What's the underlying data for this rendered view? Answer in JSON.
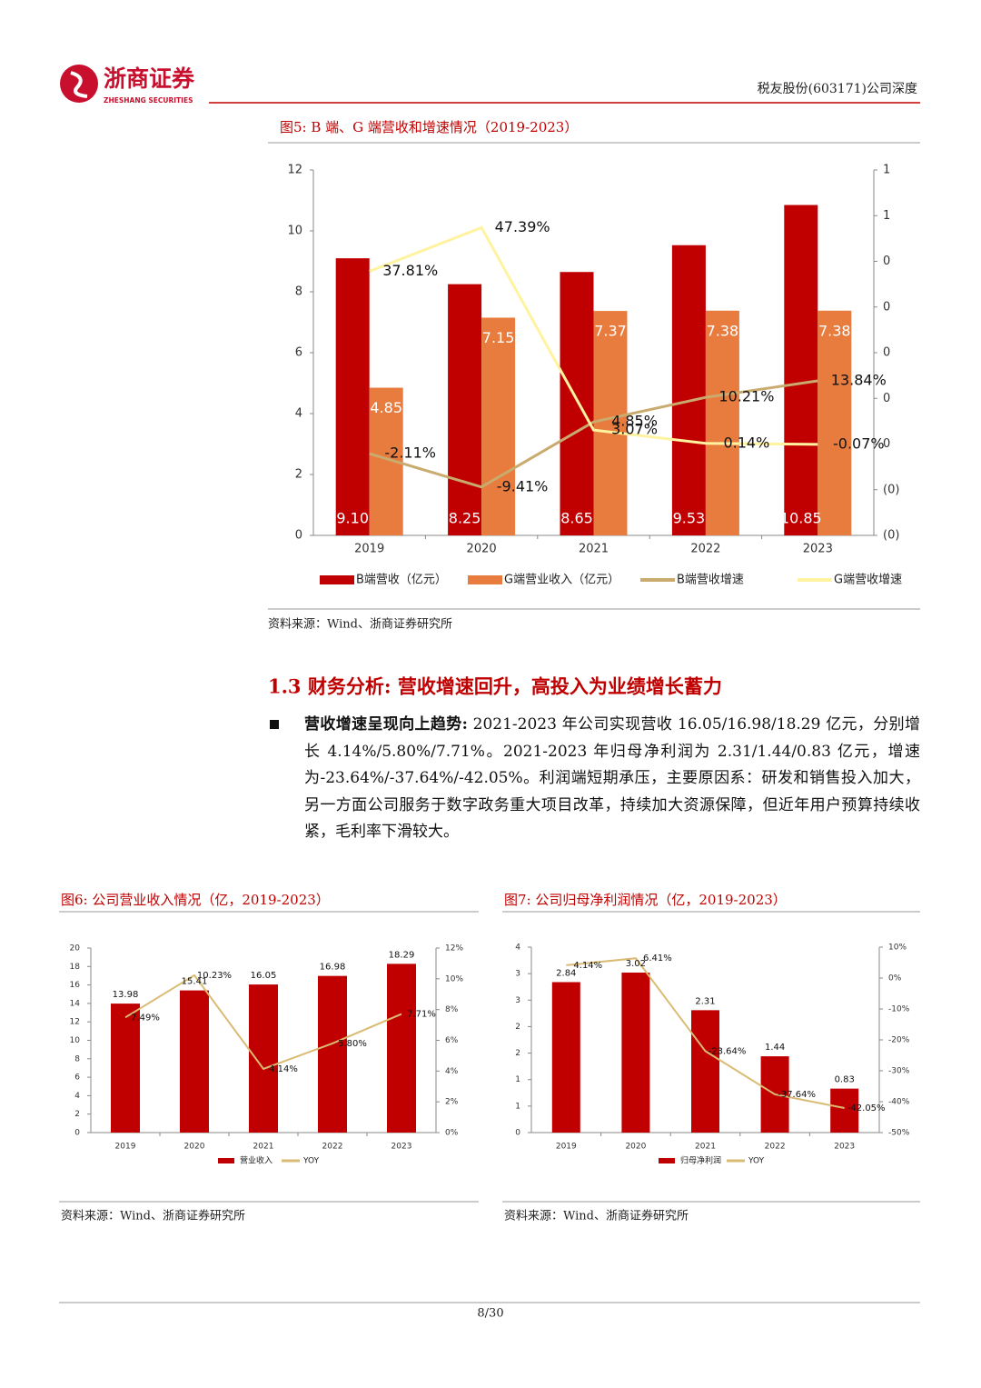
{
  "header": {
    "logo": "浙商证券",
    "logo_en": "ZHESHANG SECURITIES",
    "report": "税友股份(603171)公司深度"
  },
  "chart_data": [
    {
      "type": "bar",
      "title": "图5:  B 端、G 端营收和增速情况（2019-2023）",
      "source": "资料来源：Wind、浙商证券研究所",
      "categories": [
        "2019",
        "2020",
        "2021",
        "2022",
        "2023"
      ],
      "ylim": [
        0,
        12
      ],
      "yticks": [
        0,
        2,
        4,
        6,
        8,
        10,
        12
      ],
      "y2lim": [
        -0.2,
        0.6
      ],
      "y2ticks": [
        {
          "value": -0.2,
          "label": "(0)"
        },
        {
          "value": -0.1,
          "label": "(0)"
        },
        0,
        {
          "value": 0.1,
          "label": "0"
        },
        {
          "value": 0.2,
          "label": "0"
        },
        {
          "value": 0.3,
          "label": "0"
        },
        {
          "value": 0.4,
          "label": "0"
        },
        {
          "value": 0.5,
          "label": "1"
        },
        {
          "value": 0.6,
          "label": "1"
        }
      ],
      "series": [
        {
          "name": "B端营收（亿元）",
          "type": "bar",
          "color": "#c00000",
          "values": [
            9.1,
            8.25,
            8.65,
            9.53,
            10.85
          ],
          "value_labels": [
            "9.10",
            "8.25",
            "8.65",
            "9.53",
            "10.85"
          ]
        },
        {
          "name": "G端营业收入（亿元）",
          "type": "bar",
          "color": "#e87c3e",
          "values": [
            4.85,
            7.15,
            7.37,
            7.38,
            7.38
          ],
          "value_labels": [
            "4.85",
            "7.15",
            "7.37",
            "7.38",
            "7.38"
          ]
        },
        {
          "name": "B端营收增速",
          "type": "line",
          "axis": "y2",
          "color": "#c9ab6e",
          "values": [
            -0.0211,
            -0.0941,
            0.0485,
            0.1021,
            0.1384
          ],
          "value_labels": [
            "-2.11%",
            "-9.41%",
            "4.85%",
            "10.21%",
            "13.84%"
          ]
        },
        {
          "name": "G端营收增速",
          "type": "line",
          "axis": "y2",
          "color": "#fff3a0",
          "values": [
            0.3781,
            0.4739,
            0.0307,
            0.0014,
            -0.0007
          ],
          "value_labels": [
            "37.81%",
            "47.39%",
            "3.07%",
            "0.14%",
            "-0.07%"
          ]
        }
      ]
    },
    {
      "type": "bar",
      "title": "图6:  公司营业收入情况（亿，2019-2023）",
      "source": "资料来源：Wind、浙商证券研究所",
      "categories": [
        "2019",
        "2020",
        "2021",
        "2022",
        "2023"
      ],
      "ylim": [
        0,
        20
      ],
      "yticks": [
        0,
        2,
        4,
        6,
        8,
        10,
        12,
        14,
        16,
        18,
        20
      ],
      "y2lim": [
        0,
        12
      ],
      "y2ticks": [
        {
          "value": 0,
          "label": "0%"
        },
        {
          "value": 2,
          "label": "2%"
        },
        {
          "value": 4,
          "label": "4%"
        },
        {
          "value": 6,
          "label": "6%"
        },
        {
          "value": 8,
          "label": "8%"
        },
        {
          "value": 10,
          "label": "10%"
        },
        {
          "value": 12,
          "label": "12%"
        }
      ],
      "series": [
        {
          "name": "营业收入",
          "type": "bar",
          "color": "#c00000",
          "values": [
            13.98,
            15.41,
            16.05,
            16.98,
            18.29
          ]
        },
        {
          "name": "YOY",
          "type": "line",
          "axis": "y2",
          "color": "#d9bb73",
          "values": [
            7.49,
            10.23,
            4.14,
            5.8,
            7.71
          ],
          "value_labels": [
            "7.49%",
            "10.23%",
            "4.14%",
            "5.80%",
            "7.71%"
          ]
        }
      ]
    },
    {
      "type": "bar",
      "title": "图7:  公司归母净利润情况（亿，2019-2023）",
      "source": "资料来源：Wind、浙商证券研究所",
      "categories": [
        "2019",
        "2020",
        "2021",
        "2022",
        "2023"
      ],
      "ylim": [
        0,
        3.5
      ],
      "yticks": [
        0,
        {
          "value": 0.5,
          "label": "1"
        },
        1,
        {
          "value": 1.5,
          "label": "2"
        },
        2,
        {
          "value": 2.5,
          "label": "3"
        },
        3,
        {
          "value": 3.5,
          "label": "4"
        }
      ],
      "y2lim": [
        -50,
        10
      ],
      "y2ticks": [
        {
          "value": -50,
          "label": "-50%"
        },
        {
          "value": -40,
          "label": "-40%"
        },
        {
          "value": -30,
          "label": "-30%"
        },
        {
          "value": -20,
          "label": "-20%"
        },
        {
          "value": -10,
          "label": "-10%"
        },
        {
          "value": 0,
          "label": "0%"
        },
        {
          "value": 10,
          "label": "10%"
        }
      ],
      "series": [
        {
          "name": "归母净利润",
          "type": "bar",
          "color": "#c00000",
          "values": [
            2.84,
            3.02,
            2.31,
            1.44,
            0.83
          ]
        },
        {
          "name": "YOY",
          "type": "line",
          "axis": "y2",
          "color": "#d9bb73",
          "values": [
            4.14,
            6.41,
            -23.64,
            -37.64,
            -42.05
          ],
          "value_labels": [
            "4.14%",
            "6.41%",
            "-23.64%",
            "-37.64%",
            "-42.05%"
          ]
        }
      ]
    }
  ],
  "section": {
    "heading": "1.3 财务分析: 营收增速回升，高投入为业绩增长蓄力",
    "bold_lead": "营收增速呈现向上趋势:",
    "text": " 2021-2023 年公司实现营收 16.05/16.98/18.29 亿元，分别增长 4.14%/5.80%/7.71%。2021-2023 年归母净利润为 2.31/1.44/0.83 亿元，增速为-23.64%/-37.64%/-42.05%。利润端短期承压，主要原因系：研发和销售投入加大，另一方面公司服务于数字政务重大项目改革，持续加大资源保障，但近年用户预算持续收紧，毛利率下滑较大。"
  },
  "footer": {
    "page": "8/30"
  }
}
